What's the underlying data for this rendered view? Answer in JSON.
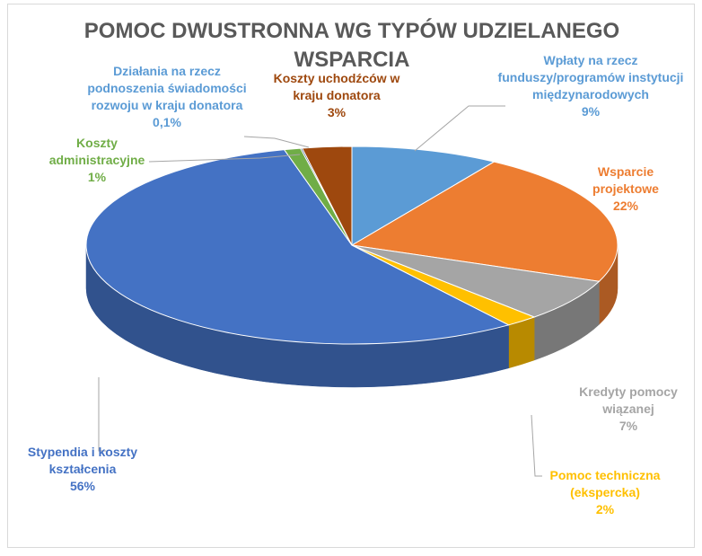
{
  "chart_data": {
    "type": "pie",
    "title_lines": [
      "POMOC DWUSTRONNA WG TYPÓW UDZIELANEGO",
      "WSPARCIA"
    ],
    "slices": [
      {
        "lines": [
          "Wpłaty na rzecz",
          "funduszy/programów instytucji",
          "międzynarodowych"
        ],
        "value": 9,
        "percent_label": "9%",
        "color": "#5b9bd5"
      },
      {
        "lines": [
          "Wsparcie",
          "projektowe"
        ],
        "value": 22,
        "percent_label": "22%",
        "color": "#ed7d31"
      },
      {
        "lines": [
          "Kredyty pomocy",
          "wiązanej"
        ],
        "value": 7,
        "percent_label": "7%",
        "color": "#a5a5a5"
      },
      {
        "lines": [
          "Pomoc techniczna",
          "(ekspercka)"
        ],
        "value": 2,
        "percent_label": "2%",
        "color": "#ffc000"
      },
      {
        "lines": [
          "Stypendia i koszty",
          "kształcenia"
        ],
        "value": 56,
        "percent_label": "56%",
        "color": "#4472c4"
      },
      {
        "lines": [
          "Koszty",
          "administracyjne"
        ],
        "value": 1,
        "percent_label": "1%",
        "color": "#70ad47"
      },
      {
        "lines": [
          "Działania na rzecz",
          "podnoszenia świadomości",
          "rozwoju w kraju donatora"
        ],
        "value": 0.1,
        "percent_label": "0,1%",
        "color": "#264478"
      },
      {
        "lines": [
          "Koszty uchodźców w",
          "kraju donatora"
        ],
        "value": 3,
        "percent_label": "3%",
        "color": "#9e480e"
      }
    ]
  }
}
